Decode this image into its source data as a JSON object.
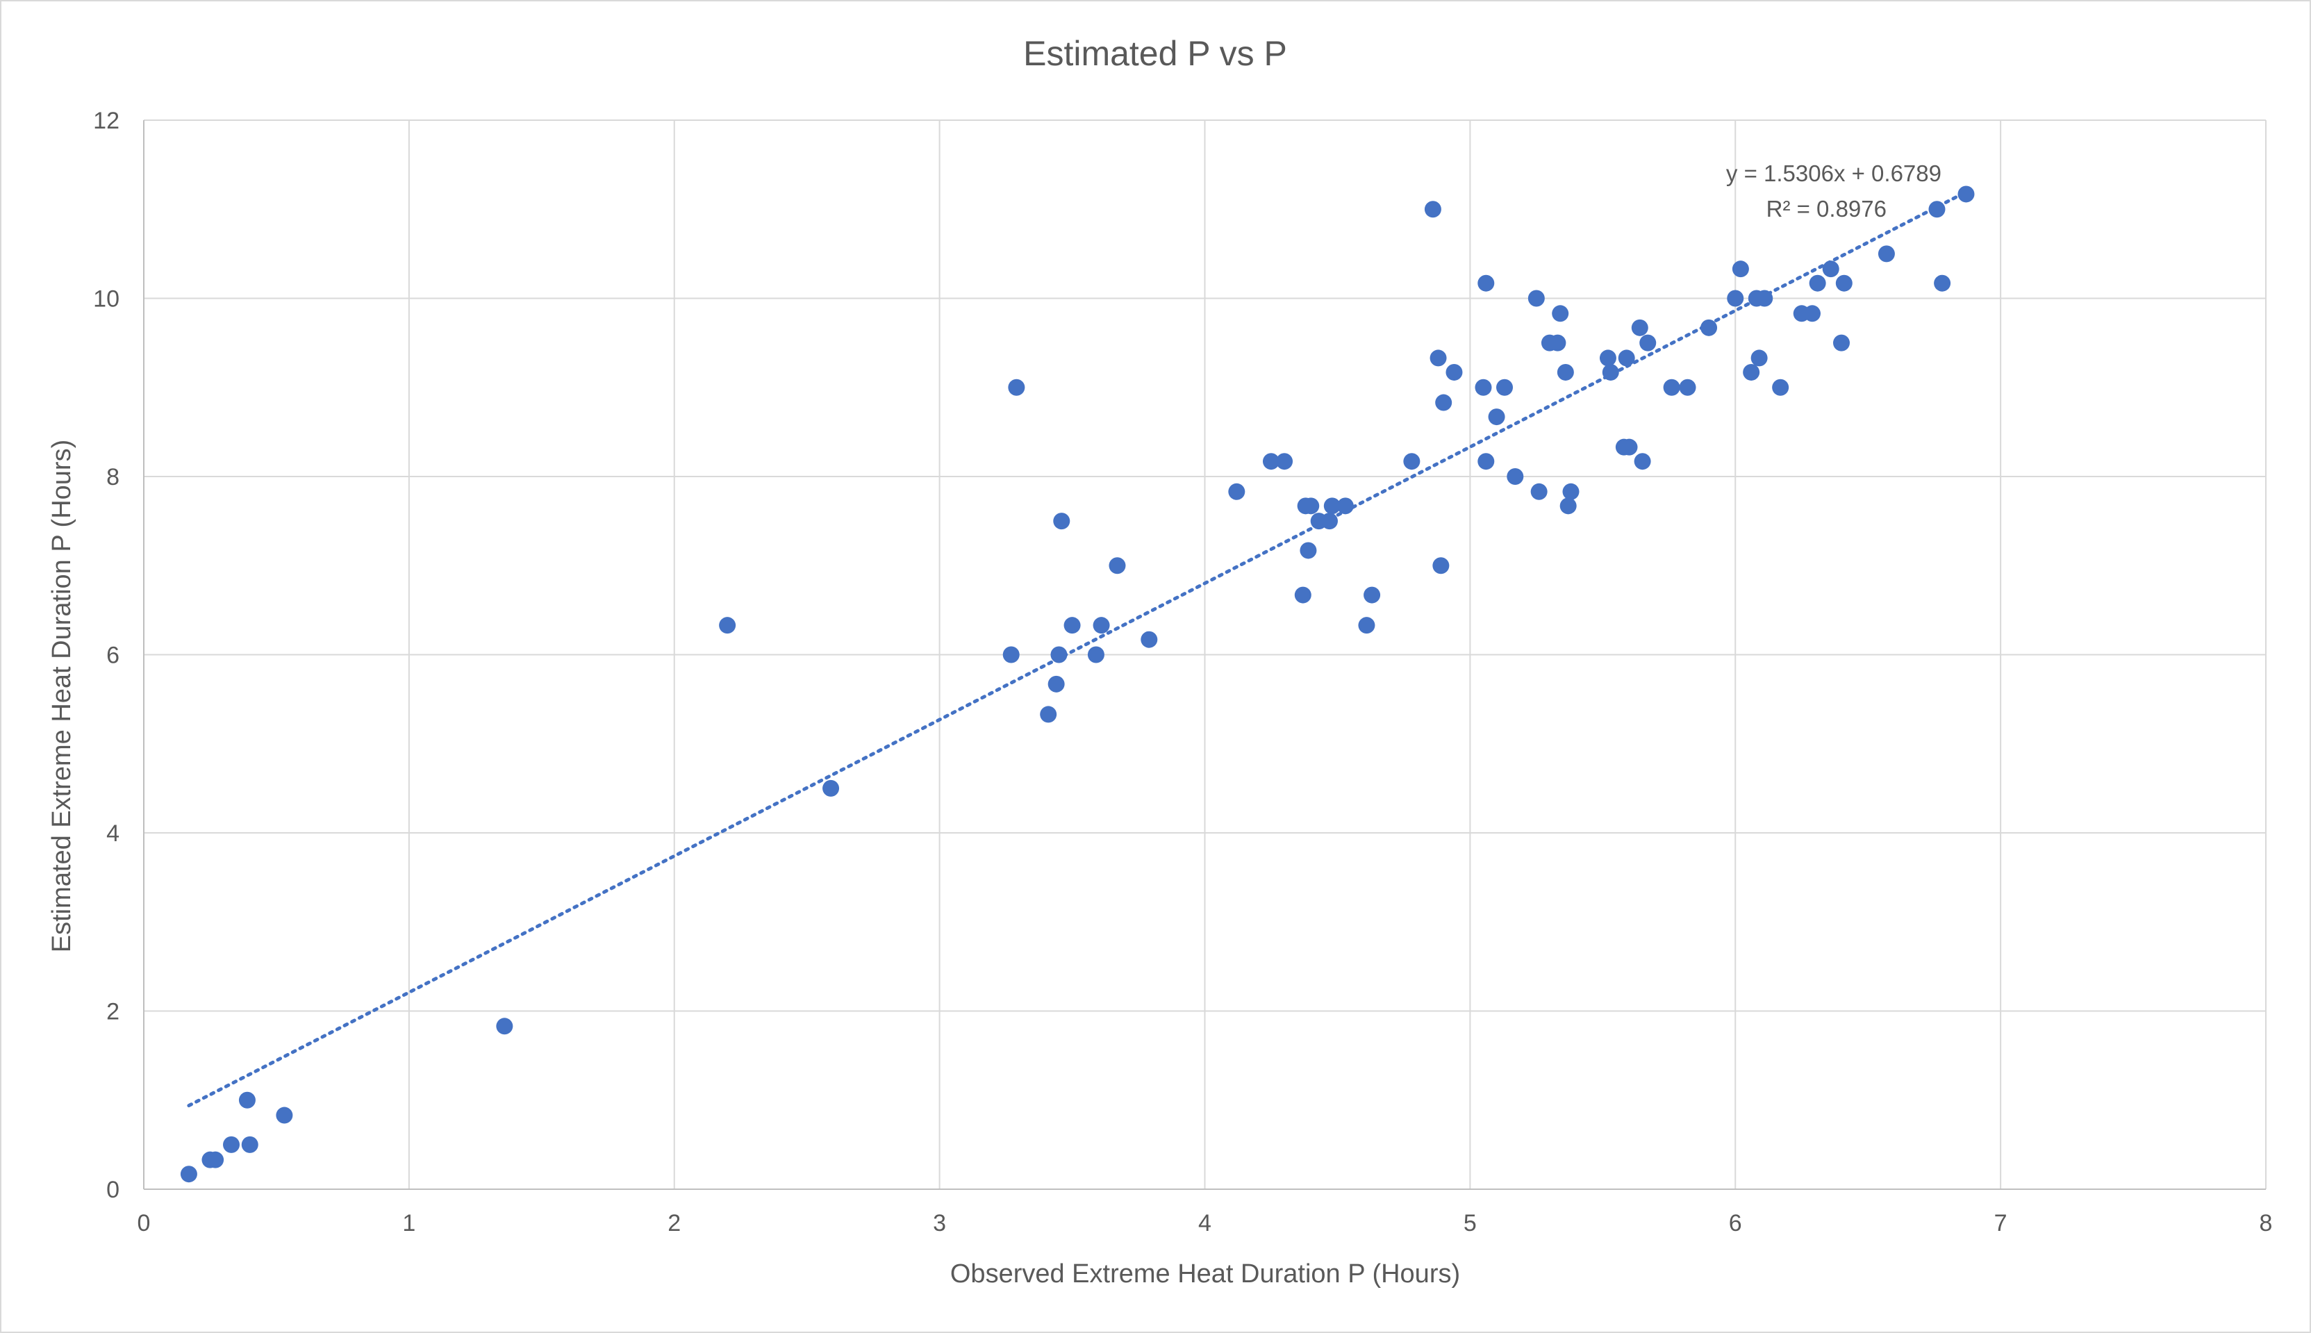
{
  "chart_data": {
    "type": "scatter",
    "title": "Estimated P vs P",
    "xlabel": "Observed Extreme Heat Duration P (Hours)",
    "ylabel": "Estimated Extreme Heat Duration P (Hours)",
    "xlim": [
      0,
      8
    ],
    "ylim": [
      0,
      12
    ],
    "x_ticks": [
      0,
      1,
      2,
      3,
      4,
      5,
      6,
      7,
      8
    ],
    "y_ticks": [
      0,
      2,
      4,
      6,
      8,
      10,
      12
    ],
    "grid": true,
    "legend": "none",
    "point_color": "#4472c4",
    "trendline": {
      "type": "linear",
      "slope": 1.5306,
      "intercept": 0.6789,
      "x_range": [
        0.17,
        6.87
      ],
      "equation_label": "y = 1.5306x + 0.6789",
      "r2_label": "R² = 0.8976",
      "style": "dotted"
    },
    "points": [
      [
        0.17,
        0.17
      ],
      [
        0.25,
        0.33
      ],
      [
        0.27,
        0.33
      ],
      [
        0.33,
        0.5
      ],
      [
        0.39,
        1.0
      ],
      [
        0.4,
        0.5
      ],
      [
        0.53,
        0.83
      ],
      [
        1.36,
        1.83
      ],
      [
        2.2,
        6.33
      ],
      [
        2.59,
        4.5
      ],
      [
        3.27,
        6.0
      ],
      [
        3.29,
        9.0
      ],
      [
        3.41,
        5.33
      ],
      [
        3.44,
        5.67
      ],
      [
        3.45,
        6.0
      ],
      [
        3.46,
        7.5
      ],
      [
        3.5,
        6.33
      ],
      [
        3.59,
        6.0
      ],
      [
        3.61,
        6.33
      ],
      [
        3.67,
        7.0
      ],
      [
        3.79,
        6.17
      ],
      [
        4.12,
        7.83
      ],
      [
        4.25,
        8.17
      ],
      [
        4.3,
        8.17
      ],
      [
        4.37,
        6.67
      ],
      [
        4.38,
        7.67
      ],
      [
        4.39,
        7.17
      ],
      [
        4.4,
        7.67
      ],
      [
        4.43,
        7.5
      ],
      [
        4.47,
        7.5
      ],
      [
        4.48,
        7.67
      ],
      [
        4.53,
        7.67
      ],
      [
        4.61,
        6.33
      ],
      [
        4.63,
        6.67
      ],
      [
        4.78,
        8.17
      ],
      [
        4.86,
        11.0
      ],
      [
        4.88,
        9.33
      ],
      [
        4.89,
        7.0
      ],
      [
        4.9,
        8.83
      ],
      [
        4.94,
        9.17
      ],
      [
        5.05,
        9.0
      ],
      [
        5.06,
        8.17
      ],
      [
        5.06,
        10.17
      ],
      [
        5.1,
        8.67
      ],
      [
        5.13,
        9.0
      ],
      [
        5.17,
        8.0
      ],
      [
        5.25,
        10.0
      ],
      [
        5.26,
        7.83
      ],
      [
        5.3,
        9.5
      ],
      [
        5.33,
        9.5
      ],
      [
        5.34,
        9.83
      ],
      [
        5.36,
        9.17
      ],
      [
        5.37,
        7.67
      ],
      [
        5.38,
        7.83
      ],
      [
        5.52,
        9.33
      ],
      [
        5.53,
        9.17
      ],
      [
        5.58,
        8.33
      ],
      [
        5.59,
        9.33
      ],
      [
        5.6,
        8.33
      ],
      [
        5.64,
        9.67
      ],
      [
        5.65,
        8.17
      ],
      [
        5.67,
        9.5
      ],
      [
        5.76,
        9.0
      ],
      [
        5.82,
        9.0
      ],
      [
        5.9,
        9.67
      ],
      [
        6.0,
        10.0
      ],
      [
        6.02,
        10.33
      ],
      [
        6.06,
        9.17
      ],
      [
        6.08,
        10.0
      ],
      [
        6.09,
        9.33
      ],
      [
        6.11,
        10.0
      ],
      [
        6.17,
        9.0
      ],
      [
        6.25,
        9.83
      ],
      [
        6.29,
        9.83
      ],
      [
        6.31,
        10.17
      ],
      [
        6.36,
        10.33
      ],
      [
        6.4,
        9.5
      ],
      [
        6.41,
        10.17
      ],
      [
        6.57,
        10.5
      ],
      [
        6.76,
        11.0
      ],
      [
        6.78,
        10.17
      ],
      [
        6.87,
        11.17
      ]
    ]
  }
}
